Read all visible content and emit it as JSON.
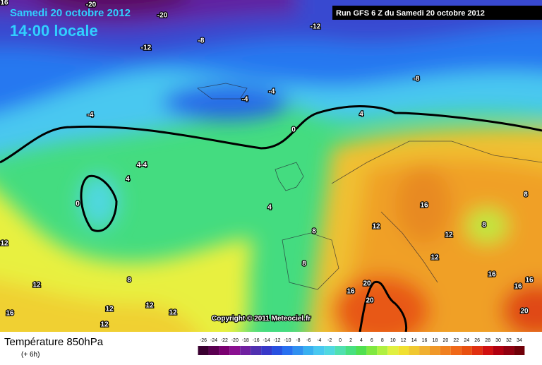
{
  "header": {
    "date": "Samedi 20 octobre 2012",
    "time": "14:00 locale",
    "run": "Run GFS 6 Z du Samedi 20 octobre 2012"
  },
  "map": {
    "copyright": "Copyright © 2011 Meteociel.fr",
    "labels": [
      "16",
      "-20",
      "-20",
      "-12",
      "-8",
      "-12",
      "-8",
      "-4",
      "-4",
      "-4",
      "4",
      "0",
      "4-4",
      "4",
      "0",
      "4",
      "16",
      "8",
      "12",
      "8",
      "12",
      "8",
      "12",
      "8",
      "12",
      "16",
      "8",
      "12",
      "16",
      "20",
      "16",
      "16",
      "12",
      "12",
      "12",
      "16",
      "20",
      "12",
      "20"
    ]
  },
  "legend": {
    "title": "Température 850hPa",
    "step": "(+ 6h)",
    "ticks": [
      -26,
      -24,
      -22,
      -20,
      -18,
      -16,
      -14,
      -12,
      -10,
      -8,
      -6,
      -4,
      -2,
      0,
      2,
      4,
      6,
      8,
      10,
      12,
      14,
      16,
      18,
      20,
      22,
      24,
      26,
      28,
      30,
      32,
      34
    ],
    "colors": [
      "#3a0030",
      "#5a0050",
      "#7a0070",
      "#8a1090",
      "#7020a0",
      "#5030b0",
      "#3838c8",
      "#2850e0",
      "#2870f0",
      "#3090f0",
      "#38b0f0",
      "#48c8f0",
      "#50d8e0",
      "#50e0b0",
      "#48e080",
      "#50e050",
      "#80e840",
      "#b0f040",
      "#e0f040",
      "#f0e030",
      "#f0c830",
      "#f0b030",
      "#f09828",
      "#f08020",
      "#f06818",
      "#e85010",
      "#e03010",
      "#d01010",
      "#b00010",
      "#900010",
      "#700008"
    ]
  }
}
